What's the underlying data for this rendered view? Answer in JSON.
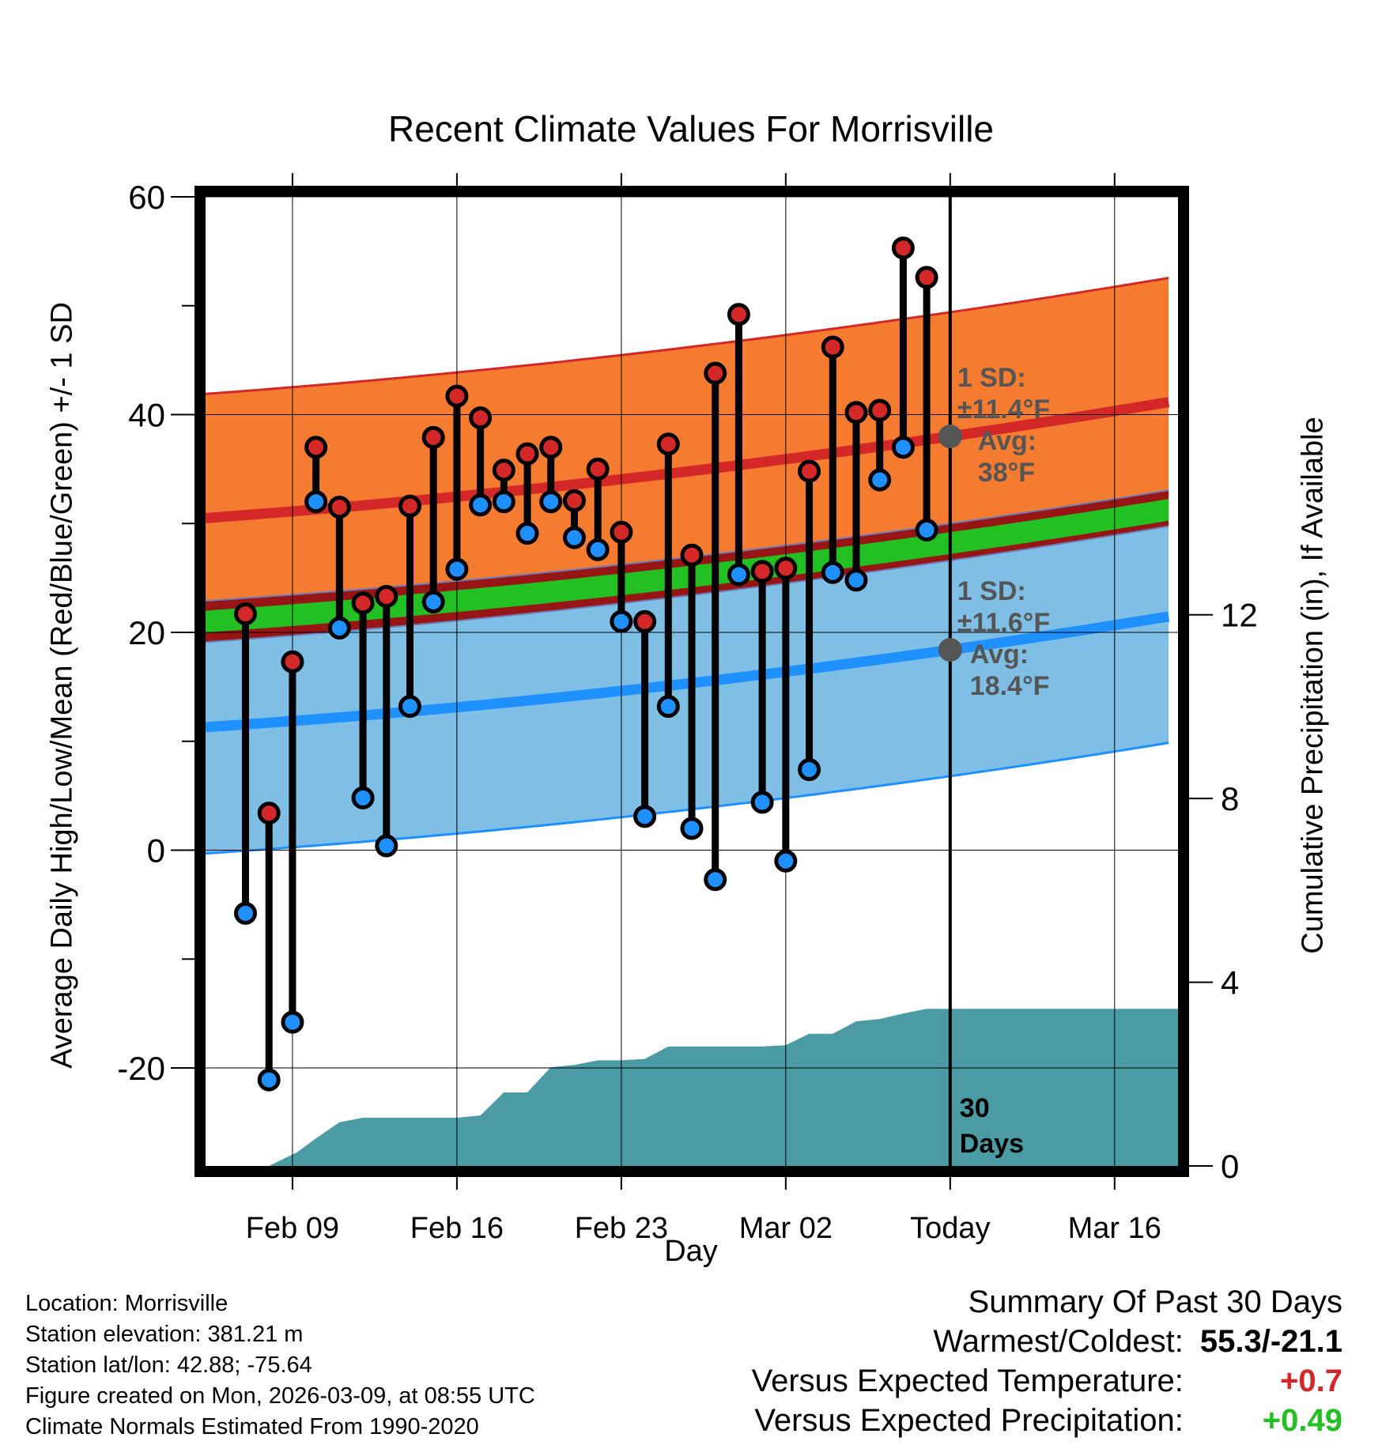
{
  "title": "Recent Climate Values For Morrisville",
  "left_axis_label": "Average Daily High/Low/Mean (Red/Blue/Green) +/- 1 SD",
  "right_axis_label": "Cumulative Precipitation (in), If Available",
  "x_axis_label": "Day",
  "colors": {
    "high_band": "#f47b30",
    "high_line": "#d42727",
    "low_band": "#7fbfe6",
    "low_line": "#1e90ff",
    "mean_band": "#22c022",
    "overlap": "#971515",
    "precip": "#4a9ba3",
    "high_marker": "#d42727",
    "low_marker": "#1e90ff",
    "annot": "#555555"
  },
  "annotations": {
    "high_sd_line1": "1 SD:",
    "high_sd_line2": "±11.4°F",
    "high_avg_line1": "Avg:",
    "high_avg_line2": "38°F",
    "low_sd_line1": "1 SD:",
    "low_sd_line2": "±11.6°F",
    "low_avg_line1": "Avg:",
    "low_avg_line2": "18.4°F",
    "days_line1": "30",
    "days_line2": "Days"
  },
  "meta": {
    "location": "Location: Morrisville",
    "elevation": "Station elevation: 381.21 m",
    "latlon": "Station lat/lon: 42.88; -75.64",
    "created": "Figure created on Mon, 2026-03-09, at 08:55 UTC",
    "normals": "Climate Normals Estimated From 1990-2020"
  },
  "summary": {
    "heading": "Summary Of Past 30 Days",
    "warmest_label": "Warmest/Coldest:",
    "warmest_value": "55.3/-21.1",
    "temp_label": "Versus Expected Temperature:",
    "temp_value": "+0.7",
    "precip_label": "Versus Expected Precipitation:",
    "precip_value": "+0.49"
  },
  "chart_data": {
    "type": "line",
    "x_ticks": [
      {
        "day": 3,
        "label": "Feb 09"
      },
      {
        "day": 10,
        "label": "Feb 16"
      },
      {
        "day": 17,
        "label": "Feb 23"
      },
      {
        "day": 24,
        "label": "Mar 02"
      },
      {
        "day": 31,
        "label": "Today"
      },
      {
        "day": 38,
        "label": "Mar 16"
      }
    ],
    "x_range": [
      -0.7,
      40.7
    ],
    "today_day": 31,
    "y_left_range": [
      -29,
      60
    ],
    "y_left_ticks": [
      -20,
      0,
      20,
      40,
      60
    ],
    "y_right_ticks": [
      0,
      4,
      8,
      12
    ],
    "y_right_range": [
      0,
      21.1
    ],
    "days": [
      1,
      2,
      3,
      4,
      5,
      6,
      7,
      8,
      9,
      10,
      11,
      12,
      13,
      14,
      15,
      16,
      17,
      18,
      19,
      20,
      21,
      22,
      23,
      24,
      25,
      26,
      27,
      28,
      29,
      30
    ],
    "highs": [
      21.7,
      3.4,
      17.3,
      37.0,
      31.5,
      22.7,
      23.3,
      31.6,
      37.9,
      41.7,
      39.7,
      34.9,
      36.4,
      37.0,
      32.1,
      35.0,
      29.2,
      21.0,
      37.3,
      27.1,
      43.8,
      49.2,
      25.6,
      25.9,
      34.8,
      46.2,
      40.2,
      40.4,
      55.3,
      52.6
    ],
    "lows": [
      -5.8,
      -21.1,
      -15.8,
      32.0,
      20.4,
      4.8,
      0.4,
      13.2,
      22.8,
      25.8,
      31.7,
      32.0,
      29.1,
      32.0,
      28.7,
      27.6,
      21.0,
      3.1,
      13.2,
      2.0,
      -2.7,
      25.3,
      4.4,
      -1.0,
      7.4,
      25.5,
      24.8,
      34.0,
      37.0,
      29.4
    ],
    "normal_high_at_start": 30.5,
    "normal_high_today": 38.0,
    "normal_high_at_end": 41.3,
    "normal_high_sd": 11.4,
    "normal_low_at_start": 11.3,
    "normal_low_today": 18.4,
    "normal_low_at_end": 21.6,
    "normal_low_sd": 11.6,
    "normal_mean_at_start": 21.0,
    "normal_mean_today": 28.2,
    "normal_mean_at_end": 31.4,
    "normal_mean_sd": 1.0,
    "cumulative_precip": [
      {
        "day": 0.1,
        "value": 0.0
      },
      {
        "day": 2.0,
        "value": 0.0
      },
      {
        "day": 3.2,
        "value": 0.3
      },
      {
        "day": 4.0,
        "value": 0.6
      },
      {
        "day": 5.0,
        "value": 0.95
      },
      {
        "day": 6.0,
        "value": 1.05
      },
      {
        "day": 7.0,
        "value": 1.05
      },
      {
        "day": 8.0,
        "value": 1.05
      },
      {
        "day": 9.0,
        "value": 1.05
      },
      {
        "day": 10.0,
        "value": 1.05
      },
      {
        "day": 11.0,
        "value": 1.1
      },
      {
        "day": 12.0,
        "value": 1.6
      },
      {
        "day": 13.0,
        "value": 1.6
      },
      {
        "day": 14.0,
        "value": 2.15
      },
      {
        "day": 15.0,
        "value": 2.2
      },
      {
        "day": 16.0,
        "value": 2.3
      },
      {
        "day": 17.0,
        "value": 2.3
      },
      {
        "day": 18.0,
        "value": 2.33
      },
      {
        "day": 19.0,
        "value": 2.6
      },
      {
        "day": 20.0,
        "value": 2.6
      },
      {
        "day": 21.0,
        "value": 2.6
      },
      {
        "day": 22.0,
        "value": 2.6
      },
      {
        "day": 23.0,
        "value": 2.6
      },
      {
        "day": 24.0,
        "value": 2.63
      },
      {
        "day": 25.0,
        "value": 2.88
      },
      {
        "day": 26.0,
        "value": 2.88
      },
      {
        "day": 27.0,
        "value": 3.15
      },
      {
        "day": 28.0,
        "value": 3.2
      },
      {
        "day": 29.0,
        "value": 3.32
      },
      {
        "day": 30.0,
        "value": 3.42
      },
      {
        "day": 31.0,
        "value": 3.42
      },
      {
        "day": 40.7,
        "value": 3.42
      }
    ]
  }
}
